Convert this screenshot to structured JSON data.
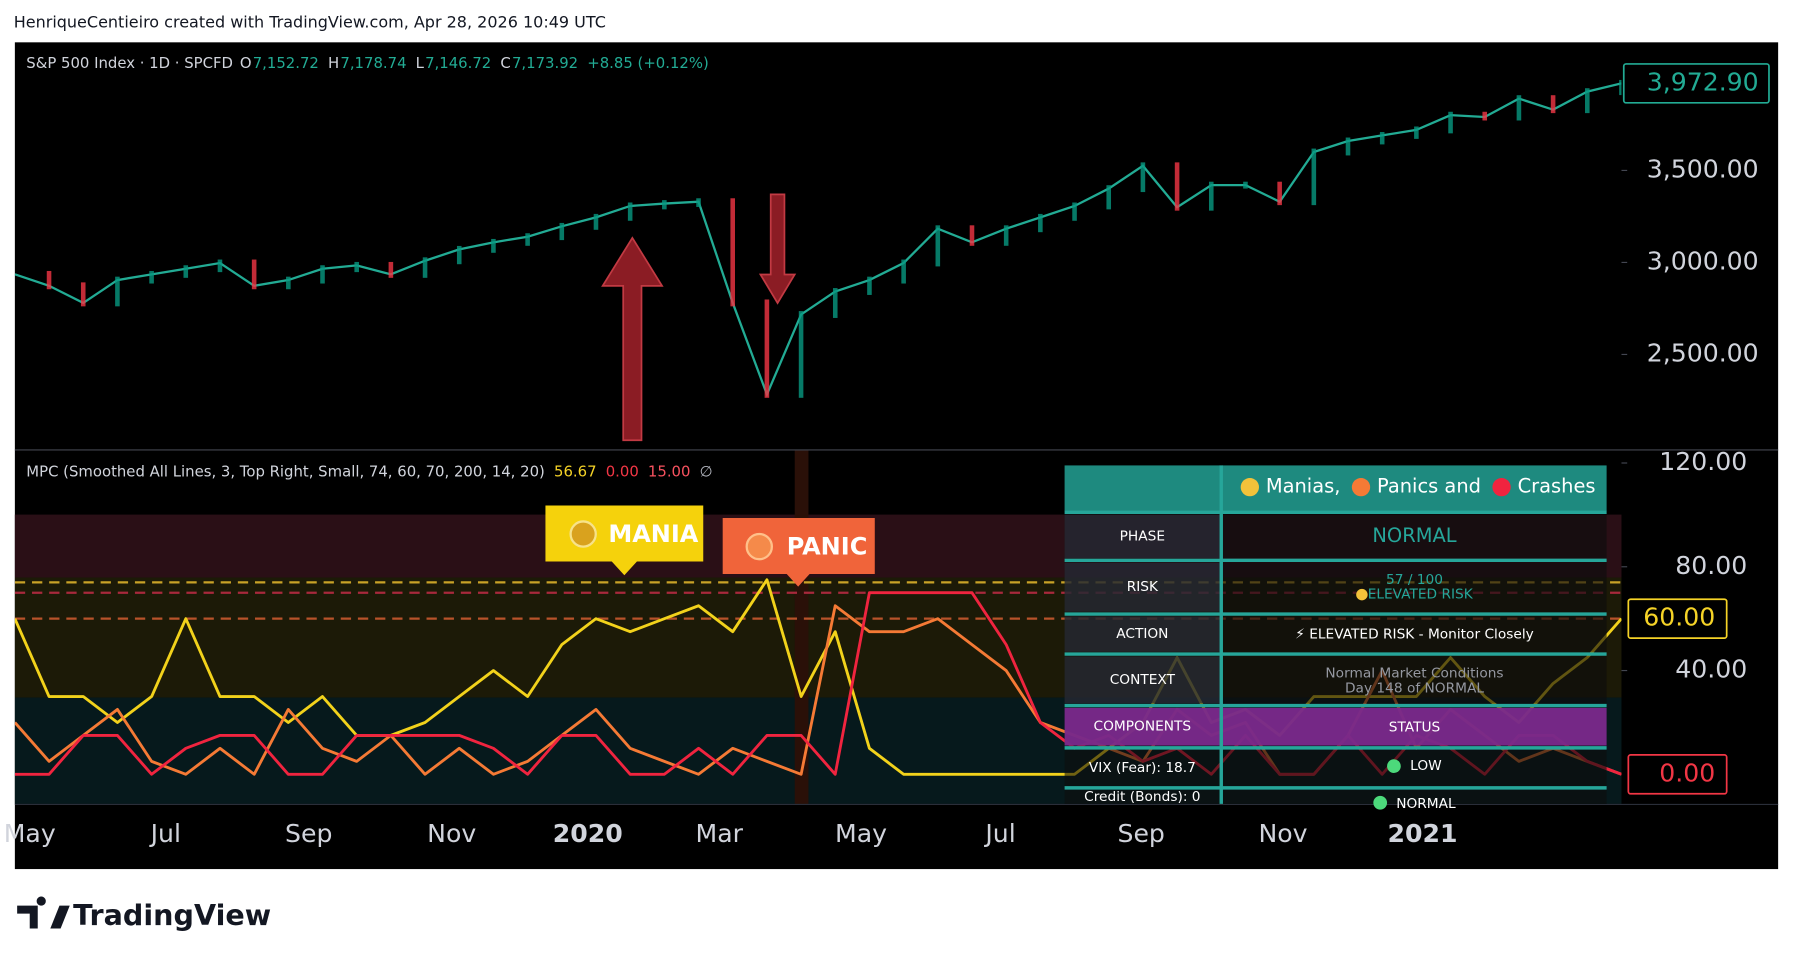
{
  "header": {
    "attribution": "HenriqueCentieiro created with TradingView.com, Apr 28, 2026 10:49 UTC"
  },
  "price_pane": {
    "symbol": "S&P 500 Index · 1D · SPCFD",
    "ohlc": [
      {
        "key": "O",
        "value": "7,152.72"
      },
      {
        "key": "H",
        "value": "7,178.74"
      },
      {
        "key": "L",
        "value": "7,146.72"
      },
      {
        "key": "C",
        "value": "7,173.92"
      }
    ],
    "change": "+8.85 (+0.12%)",
    "ylim": [
      1984,
      4196
    ],
    "yticks": [
      {
        "value": 3500,
        "label": "3,500.00"
      },
      {
        "value": 3000,
        "label": "3,000.00"
      },
      {
        "value": 2500,
        "label": "2,500.00"
      }
    ],
    "last": {
      "value": 3972.9,
      "label": "3,972.90"
    },
    "series": {
      "color": "#22ab94",
      "values": [
        2935,
        2873,
        2780,
        2904,
        2935,
        2966,
        2997,
        2873,
        2904,
        2966,
        2984,
        2935,
        3009,
        3071,
        3109,
        3140,
        3196,
        3245,
        3307,
        3320,
        3330,
        2780,
        2283,
        2717,
        2842,
        2904,
        2997,
        3183,
        3109,
        3183,
        3245,
        3307,
        3401,
        3525,
        3300,
        3420,
        3420,
        3330,
        3600,
        3660,
        3690,
        3720,
        3800,
        3790,
        3890,
        3830,
        3928,
        3973
      ]
    }
  },
  "indicator_pane": {
    "legend": "MPC (Smoothed All Lines, 3, Top Right, Small, 74, 60, 70, 200, 14, 20)",
    "legend_values": [
      {
        "text": "56.67",
        "color": "#f5d327"
      },
      {
        "text": "0.00",
        "color": "#f23645"
      },
      {
        "text": "15.00",
        "color": "#f7525f"
      },
      {
        "text": "∅",
        "color": "#b2b5be"
      }
    ],
    "ylim": [
      -11.4,
      124.8
    ],
    "yticks": [
      {
        "value": 120,
        "label": "120.00"
      },
      {
        "value": 80,
        "label": "80.00"
      },
      {
        "value": 40,
        "label": "40.00"
      }
    ],
    "levels": [
      {
        "value": 74,
        "color": "#c9a227"
      },
      {
        "value": 70,
        "color": "#a8293c"
      },
      {
        "value": 60,
        "color": "#b8532a"
      }
    ],
    "badges": [
      {
        "value": 60,
        "label": "60.00",
        "color": "#f5d327"
      },
      {
        "value": 0,
        "label": "0.00",
        "color": "#f23645"
      }
    ],
    "series": [
      {
        "color": "#f2d21b",
        "values": [
          60,
          30,
          30,
          20,
          30,
          60,
          30,
          30,
          20,
          30,
          15,
          15,
          20,
          30,
          40,
          30,
          50,
          60,
          55,
          60,
          65,
          55,
          75,
          30,
          55,
          10,
          0,
          0,
          0,
          0,
          0,
          0,
          10,
          20,
          45,
          20,
          25,
          15,
          30,
          30,
          30,
          30,
          45,
          30,
          20,
          35,
          45,
          60
        ]
      },
      {
        "color": "#f57a35",
        "values": [
          20,
          5,
          15,
          25,
          5,
          0,
          10,
          0,
          25,
          10,
          5,
          15,
          0,
          10,
          0,
          5,
          15,
          25,
          10,
          5,
          0,
          10,
          5,
          0,
          65,
          55,
          55,
          60,
          50,
          40,
          20,
          15,
          10,
          5,
          25,
          15,
          20,
          0,
          0,
          15,
          40,
          10,
          25,
          15,
          5,
          10,
          5,
          0
        ]
      },
      {
        "color": "#f0243f",
        "values": [
          0,
          0,
          15,
          15,
          0,
          10,
          15,
          15,
          0,
          0,
          15,
          15,
          15,
          15,
          10,
          0,
          15,
          15,
          0,
          0,
          10,
          0,
          15,
          15,
          0,
          70,
          70,
          70,
          70,
          50,
          20,
          10,
          15,
          5,
          10,
          0,
          15,
          0,
          0,
          15,
          0,
          15,
          10,
          0,
          15,
          15,
          5,
          0
        ]
      }
    ],
    "labels": {
      "mania": "MANIA",
      "panic": "PANIC"
    },
    "table": {
      "header": [
        "Manias,",
        "Panics and",
        "Crashes"
      ],
      "phase": {
        "label": "PHASE",
        "value": "NORMAL"
      },
      "risk": {
        "label": "RISK",
        "score": "57 / 100",
        "value": "ELEVATED RISK"
      },
      "action": {
        "label": "ACTION",
        "value": "⚡ ELEVATED RISK - Monitor Closely"
      },
      "context": {
        "label": "CONTEXT",
        "lines": [
          "Normal Market Conditions",
          "Day 148 of NORMAL"
        ]
      },
      "components": {
        "label": "COMPONENTS",
        "status": "STATUS"
      },
      "vix": {
        "label": "VIX (Fear): 18.7",
        "value": "LOW"
      },
      "credit": {
        "label": "Credit (Bonds): 0",
        "value": "NORMAL"
      }
    }
  },
  "time_axis": [
    "May",
    "Jul",
    "Sep",
    "Nov",
    "2020",
    "Mar",
    "May",
    "Jul",
    "Sep",
    "Nov",
    "2021"
  ],
  "footer": {
    "brand": "TradingView"
  }
}
